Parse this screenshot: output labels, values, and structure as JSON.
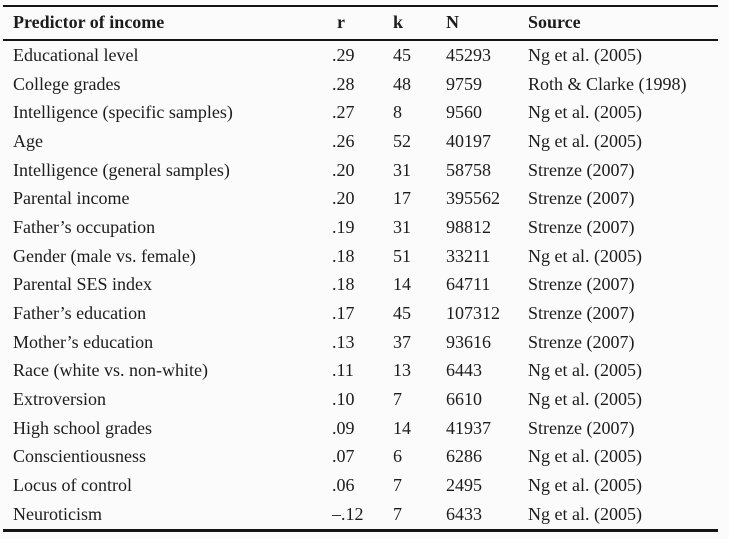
{
  "colors": {
    "background": "#fbfbfb",
    "text": "#1c1c1c",
    "rule": "#151515"
  },
  "table": {
    "columns": [
      {
        "label": "Predictor of income"
      },
      {
        "label": "r"
      },
      {
        "label": "k"
      },
      {
        "label": "N"
      },
      {
        "label": "Source"
      }
    ],
    "rows": [
      {
        "predictor": "Educational level",
        "r": ".29",
        "k": "45",
        "n": "45293",
        "source": "Ng et al. (2005)"
      },
      {
        "predictor": "College grades",
        "r": ".28",
        "k": "48",
        "n": "9759",
        "source": "Roth & Clarke (1998)"
      },
      {
        "predictor": "Intelligence (specific samples)",
        "r": ".27",
        "k": "8",
        "n": "9560",
        "source": "Ng et al. (2005)"
      },
      {
        "predictor": "Age",
        "r": ".26",
        "k": "52",
        "n": "40197",
        "source": "Ng et al. (2005)"
      },
      {
        "predictor": "Intelligence (general samples)",
        "r": ".20",
        "k": "31",
        "n": "58758",
        "source": "Strenze (2007)"
      },
      {
        "predictor": "Parental income",
        "r": ".20",
        "k": "17",
        "n": "395562",
        "source": "Strenze (2007)"
      },
      {
        "predictor": "Father’s occupation",
        "r": ".19",
        "k": "31",
        "n": "98812",
        "source": "Strenze (2007)"
      },
      {
        "predictor": "Gender (male vs. female)",
        "r": ".18",
        "k": "51",
        "n": "33211",
        "source": "Ng et al. (2005)"
      },
      {
        "predictor": "Parental SES index",
        "r": ".18",
        "k": "14",
        "n": "64711",
        "source": "Strenze (2007)"
      },
      {
        "predictor": "Father’s education",
        "r": ".17",
        "k": "45",
        "n": "107312",
        "source": "Strenze (2007)"
      },
      {
        "predictor": "Mother’s education",
        "r": ".13",
        "k": "37",
        "n": "93616",
        "source": "Strenze (2007)"
      },
      {
        "predictor": "Race (white vs. non-white)",
        "r": ".11",
        "k": "13",
        "n": "6443",
        "source": "Ng et al. (2005)"
      },
      {
        "predictor": "Extroversion",
        "r": ".10",
        "k": "7",
        "n": "6610",
        "source": "Ng et al. (2005)"
      },
      {
        "predictor": "High school grades",
        "r": ".09",
        "k": "14",
        "n": "41937",
        "source": "Strenze (2007)"
      },
      {
        "predictor": "Conscientiousness",
        "r": ".07",
        "k": "6",
        "n": "6286",
        "source": "Ng et al. (2005)"
      },
      {
        "predictor": "Locus of control",
        "r": ".06",
        "k": "7",
        "n": "2495",
        "source": "Ng et al. (2005)"
      },
      {
        "predictor": "Neuroticism",
        "r": "–.12",
        "k": "7",
        "n": "6433",
        "source": "Ng et al. (2005)"
      }
    ]
  }
}
